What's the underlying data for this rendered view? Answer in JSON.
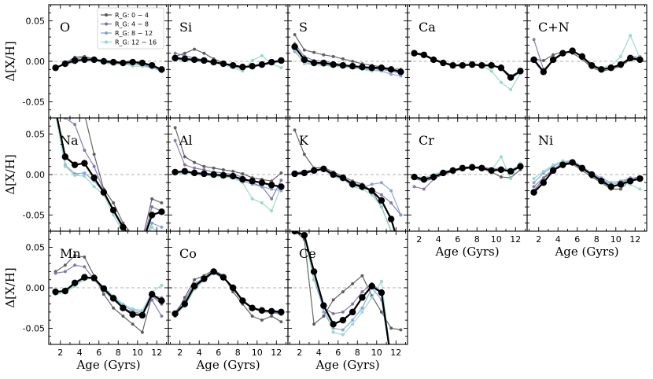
{
  "chart_data": {
    "type": "line",
    "layout": "grid of small multiples, 3 rows by 5 columns, shared axes",
    "xlabel": "Age (Gyrs)",
    "ylabel": "Δ[X/H]",
    "xlim": [
      0.8,
      13.2
    ],
    "ylim": [
      -0.07,
      0.07
    ],
    "xticks": [
      2,
      4,
      6,
      8,
      10,
      12
    ],
    "yticks": [
      -0.05,
      0.0,
      0.05
    ],
    "ytick_labels": [
      "-0.05",
      "0.00",
      "0.05"
    ],
    "zero_line": "dashed grey at 0.00",
    "x": [
      1.5,
      2.5,
      3.5,
      4.5,
      5.5,
      6.5,
      7.5,
      8.5,
      9.5,
      10.5,
      11.5,
      12.5
    ],
    "legend": {
      "location": "top-left of first panel",
      "entries": [
        {
          "label": "R_G: 0 − 4",
          "color": "#555555"
        },
        {
          "label": "R_G: 4 − 8",
          "color": "#7a6faa"
        },
        {
          "label": "R_G: 8 − 12",
          "color": "#7f9fd6"
        },
        {
          "label": "R_G: 12 − 16",
          "color": "#8fd8c8"
        }
      ]
    },
    "colors": {
      "mean": "#000000",
      "r0": "#555555",
      "r1": "#7a6faa",
      "r2": "#7f9fd6",
      "r3": "#8fd8c8"
    },
    "panels": [
      {
        "label": "O",
        "row": 0,
        "col": 0,
        "mean": [
          -0.008,
          -0.003,
          0.001,
          0.002,
          0.002,
          0.0,
          -0.001,
          -0.002,
          -0.001,
          -0.002,
          -0.005,
          -0.01
        ],
        "r0": [
          -0.009,
          -0.002,
          0.005,
          0.006,
          0.003,
          0.001,
          0.0,
          -0.001,
          0.001,
          -0.006,
          -0.006,
          -0.012
        ],
        "r1": [
          -0.01,
          -0.001,
          0.003,
          0.005,
          0.002,
          -0.001,
          -0.003,
          -0.002,
          0.0,
          -0.002,
          -0.008,
          -0.011
        ],
        "r2": [
          -0.008,
          -0.003,
          0.0,
          0.002,
          0.001,
          0.0,
          -0.002,
          -0.004,
          -0.003,
          -0.005,
          -0.007,
          -0.013
        ],
        "r3": [
          -0.007,
          -0.004,
          -0.002,
          0.001,
          0.001,
          -0.002,
          -0.004,
          -0.003,
          -0.006,
          -0.006,
          -0.008,
          -0.009
        ]
      },
      {
        "label": "Si",
        "row": 0,
        "col": 1,
        "mean": [
          0.004,
          0.003,
          0.002,
          0.001,
          -0.001,
          -0.003,
          -0.005,
          -0.007,
          -0.006,
          -0.004,
          -0.001,
          0.001
        ],
        "r0": [
          0.006,
          0.01,
          0.015,
          0.01,
          0.003,
          -0.002,
          -0.006,
          -0.009,
          -0.005,
          -0.005,
          -0.001,
          0.001
        ],
        "r1": [
          0.01,
          0.007,
          0.004,
          0.002,
          -0.001,
          -0.003,
          -0.006,
          -0.008,
          -0.006,
          -0.004,
          -0.002,
          0.001
        ],
        "r2": [
          0.003,
          0.002,
          0.001,
          0.0,
          -0.002,
          -0.004,
          -0.006,
          -0.008,
          -0.007,
          -0.005,
          -0.003,
          0.0
        ],
        "r3": [
          0.002,
          0.001,
          0.0,
          -0.001,
          -0.002,
          -0.004,
          -0.008,
          -0.012,
          0.001,
          0.007,
          -0.003,
          -0.008
        ]
      },
      {
        "label": "S",
        "row": 0,
        "col": 2,
        "mean": [
          0.018,
          0.002,
          -0.002,
          -0.002,
          -0.004,
          -0.005,
          -0.006,
          -0.007,
          -0.008,
          -0.008,
          -0.01,
          -0.013
        ],
        "r0": [
          0.033,
          0.014,
          0.011,
          0.008,
          0.006,
          0.003,
          0.0,
          -0.003,
          -0.005,
          -0.007,
          -0.009,
          -0.01
        ],
        "r1": [
          0.022,
          0.006,
          0.001,
          0.0,
          -0.002,
          -0.004,
          -0.006,
          -0.008,
          -0.009,
          -0.01,
          -0.012,
          -0.015
        ],
        "r2": [
          0.012,
          -0.001,
          -0.004,
          -0.005,
          -0.006,
          -0.007,
          -0.008,
          -0.009,
          -0.011,
          -0.012,
          -0.016,
          -0.018
        ],
        "r3": [
          0.014,
          -0.003,
          -0.004,
          -0.004,
          -0.006,
          -0.007,
          -0.008,
          -0.01,
          -0.012,
          -0.01,
          -0.008,
          -0.012
        ]
      },
      {
        "label": "Ca",
        "row": 0,
        "col": 3,
        "mean": [
          0.01,
          0.008,
          0.002,
          -0.002,
          -0.005,
          -0.005,
          -0.004,
          -0.005,
          -0.005,
          -0.008,
          -0.02,
          -0.012
        ],
        "r0": [
          0.011,
          0.009,
          0.003,
          -0.001,
          -0.004,
          -0.005,
          -0.004,
          -0.005,
          -0.005,
          -0.008,
          -0.018,
          -0.012
        ],
        "r1": [
          0.01,
          0.008,
          0.002,
          -0.002,
          -0.005,
          -0.005,
          -0.004,
          -0.005,
          -0.005,
          -0.008,
          -0.021,
          -0.012
        ],
        "r2": [
          0.009,
          0.007,
          0.002,
          -0.002,
          -0.006,
          -0.005,
          -0.004,
          -0.006,
          -0.005,
          -0.009,
          -0.022,
          -0.013
        ],
        "r3": [
          0.012,
          0.007,
          0.003,
          -0.003,
          -0.004,
          -0.004,
          -0.004,
          -0.005,
          -0.012,
          -0.026,
          -0.035,
          -0.015
        ]
      },
      {
        "label": "C+N",
        "row": 0,
        "col": 4,
        "mean": [
          0.002,
          -0.013,
          0.002,
          0.01,
          0.013,
          0.006,
          -0.005,
          -0.01,
          -0.008,
          -0.004,
          0.004,
          0.002
        ],
        "r0": [
          0.003,
          0.001,
          0.008,
          0.012,
          0.01,
          0.003,
          -0.008,
          -0.012,
          -0.01,
          -0.006,
          0.002,
          0.002
        ],
        "r1": [
          0.027,
          -0.01,
          0.001,
          0.009,
          0.014,
          0.005,
          -0.006,
          -0.01,
          -0.008,
          -0.005,
          0.006,
          0.005
        ],
        "r2": [
          0.0,
          -0.014,
          0.002,
          0.01,
          0.012,
          0.007,
          -0.004,
          -0.009,
          -0.008,
          -0.004,
          0.003,
          0.006
        ],
        "r3": [
          0.004,
          -0.013,
          0.003,
          0.011,
          0.012,
          0.006,
          -0.004,
          -0.008,
          -0.005,
          0.006,
          0.032,
          0.004
        ]
      },
      {
        "label": "Na",
        "row": 1,
        "col": 0,
        "mean": [
          0.08,
          0.022,
          0.012,
          0.014,
          -0.004,
          -0.022,
          -0.044,
          -0.065,
          -0.08,
          -0.085,
          -0.05,
          -0.046
        ],
        "r0": [
          0.09,
          0.085,
          0.08,
          0.075,
          0.025,
          -0.018,
          -0.035,
          -0.06,
          -0.075,
          -0.08,
          -0.03,
          -0.035
        ],
        "r1": [
          0.09,
          0.07,
          0.062,
          0.03,
          0.01,
          -0.02,
          -0.045,
          -0.068,
          -0.082,
          -0.085,
          -0.04,
          -0.045
        ],
        "r2": [
          0.08,
          0.012,
          0.001,
          0.002,
          -0.008,
          -0.022,
          -0.045,
          -0.068,
          -0.085,
          -0.088,
          -0.06,
          -0.065
        ],
        "r3": [
          0.075,
          0.01,
          -0.001,
          -0.002,
          -0.015,
          -0.025,
          -0.05,
          -0.072,
          -0.088,
          -0.09,
          -0.065,
          -0.075
        ]
      },
      {
        "label": "Al",
        "row": 1,
        "col": 1,
        "mean": [
          0.003,
          0.004,
          0.002,
          0.001,
          0.0,
          -0.001,
          -0.002,
          -0.006,
          -0.008,
          -0.01,
          -0.013,
          -0.015
        ],
        "r0": [
          0.058,
          0.022,
          0.015,
          0.01,
          0.008,
          0.006,
          0.004,
          0.001,
          -0.004,
          -0.006,
          -0.008,
          0.002
        ],
        "r1": [
          0.042,
          0.012,
          0.008,
          0.006,
          0.003,
          0.002,
          0.0,
          -0.003,
          -0.01,
          -0.015,
          -0.03,
          -0.007
        ],
        "r2": [
          0.002,
          0.003,
          0.001,
          0.0,
          -0.001,
          -0.002,
          -0.004,
          -0.008,
          -0.012,
          -0.015,
          -0.018,
          -0.02
        ],
        "r3": [
          0.001,
          0.002,
          0.0,
          -0.001,
          -0.002,
          -0.003,
          -0.004,
          -0.01,
          -0.03,
          -0.035,
          -0.045,
          -0.015
        ]
      },
      {
        "label": "K",
        "row": 1,
        "col": 2,
        "mean": [
          0.001,
          0.002,
          0.005,
          0.007,
          0.0,
          -0.004,
          -0.012,
          -0.015,
          -0.02,
          -0.032,
          -0.055,
          -0.095
        ],
        "r0": [
          0.055,
          0.025,
          0.008,
          0.009,
          0.003,
          -0.002,
          -0.008,
          -0.012,
          -0.02,
          -0.04,
          -0.07,
          -0.095
        ],
        "r1": [
          0.002,
          0.004,
          0.006,
          0.006,
          0.001,
          -0.004,
          -0.01,
          -0.014,
          -0.019,
          -0.025,
          -0.035,
          -0.05
        ],
        "r2": [
          0.0,
          0.001,
          0.004,
          0.006,
          -0.002,
          -0.006,
          -0.013,
          -0.016,
          -0.012,
          -0.01,
          -0.02,
          -0.05
        ],
        "r3": [
          0.001,
          0.002,
          0.005,
          0.008,
          0.0,
          -0.006,
          -0.015,
          -0.018,
          -0.025,
          -0.04,
          -0.07,
          -0.095
        ]
      },
      {
        "label": "Cr",
        "row": 1,
        "col": 3,
        "mean": [
          -0.003,
          -0.006,
          -0.003,
          0.002,
          0.005,
          0.008,
          0.009,
          0.008,
          0.005,
          0.006,
          0.004,
          0.01
        ],
        "r0": [
          -0.005,
          -0.008,
          -0.005,
          0.0,
          0.004,
          0.007,
          0.008,
          0.008,
          0.003,
          -0.003,
          -0.004,
          0.006
        ],
        "r1": [
          -0.015,
          -0.018,
          -0.006,
          0.002,
          0.006,
          0.008,
          0.009,
          0.01,
          0.007,
          0.008,
          0.005,
          0.012
        ],
        "r2": [
          -0.002,
          -0.005,
          -0.002,
          0.003,
          0.006,
          0.008,
          0.01,
          0.008,
          0.006,
          0.008,
          0.006,
          0.01
        ],
        "r3": [
          -0.002,
          -0.004,
          0.0,
          0.004,
          0.006,
          0.009,
          0.01,
          0.009,
          0.005,
          0.022,
          -0.005,
          0.014
        ]
      },
      {
        "label": "Ni",
        "row": 1,
        "col": 4,
        "mean": [
          -0.022,
          -0.01,
          0.005,
          0.012,
          0.015,
          0.008,
          0.0,
          -0.008,
          -0.015,
          -0.012,
          -0.008,
          -0.005
        ],
        "r0": [
          -0.02,
          -0.005,
          0.006,
          0.012,
          0.013,
          0.005,
          -0.003,
          -0.01,
          -0.018,
          -0.018,
          -0.006,
          -0.006
        ],
        "r1": [
          -0.015,
          -0.004,
          0.007,
          0.014,
          0.016,
          0.009,
          0.001,
          -0.006,
          -0.012,
          -0.01,
          -0.005,
          -0.003
        ],
        "r2": [
          -0.01,
          0.002,
          0.01,
          0.016,
          0.017,
          0.01,
          0.002,
          -0.004,
          -0.01,
          -0.008,
          -0.004,
          -0.006
        ],
        "r3": [
          -0.005,
          0.004,
          0.012,
          0.017,
          0.014,
          0.007,
          -0.002,
          -0.008,
          -0.012,
          -0.01,
          -0.012,
          -0.018
        ]
      },
      {
        "label": "Mn",
        "row": 2,
        "col": 0,
        "mean": [
          -0.005,
          -0.004,
          0.006,
          0.013,
          0.012,
          -0.001,
          -0.013,
          -0.025,
          -0.033,
          -0.034,
          -0.008,
          -0.016
        ],
        "r0": [
          0.02,
          0.028,
          0.04,
          0.038,
          0.015,
          -0.008,
          -0.025,
          -0.035,
          -0.045,
          -0.055,
          -0.01,
          -0.02
        ],
        "r1": [
          0.018,
          0.02,
          0.028,
          0.026,
          0.01,
          -0.003,
          -0.015,
          -0.025,
          -0.03,
          -0.032,
          -0.015,
          -0.035
        ],
        "r2": [
          -0.006,
          -0.004,
          0.004,
          0.012,
          0.011,
          0.0,
          -0.012,
          -0.022,
          -0.028,
          -0.03,
          -0.01,
          -0.012
        ],
        "r3": [
          -0.008,
          -0.006,
          0.002,
          0.01,
          0.012,
          0.001,
          -0.01,
          -0.02,
          -0.026,
          -0.028,
          -0.005,
          0.003
        ]
      },
      {
        "label": "Co",
        "row": 2,
        "col": 1,
        "mean": [
          -0.032,
          -0.02,
          0.002,
          0.011,
          0.02,
          0.013,
          0.0,
          -0.016,
          -0.025,
          -0.028,
          -0.029,
          -0.03
        ],
        "r0": [
          -0.035,
          -0.012,
          0.01,
          0.015,
          0.022,
          0.015,
          -0.005,
          -0.02,
          -0.035,
          -0.04,
          -0.035,
          -0.042
        ],
        "r1": [
          -0.03,
          -0.015,
          0.005,
          0.012,
          0.021,
          0.014,
          0.0,
          -0.015,
          -0.025,
          -0.03,
          -0.03,
          -0.033
        ],
        "r2": [
          -0.031,
          -0.021,
          0.0,
          0.01,
          0.019,
          0.012,
          0.001,
          -0.017,
          -0.026,
          -0.028,
          -0.029,
          -0.032
        ],
        "r3": [
          -0.033,
          -0.023,
          -0.002,
          0.009,
          0.018,
          0.011,
          0.002,
          -0.015,
          -0.024,
          -0.028,
          -0.028,
          -0.028
        ]
      },
      {
        "label": "Ce",
        "row": 2,
        "col": 2,
        "mean": [
          0.07,
          0.065,
          0.02,
          -0.022,
          -0.045,
          -0.04,
          -0.03,
          -0.012,
          0.002,
          -0.006,
          -0.09,
          -0.09
        ],
        "r0": [
          0.07,
          0.06,
          -0.045,
          -0.035,
          -0.015,
          -0.005,
          0.005,
          0.015,
          -0.01,
          -0.03,
          -0.05,
          -0.052
        ],
        "r1": [
          0.07,
          0.065,
          0.01,
          -0.025,
          -0.032,
          -0.03,
          -0.02,
          -0.005,
          0.005,
          -0.005,
          -0.085,
          -0.09
        ],
        "r2": [
          0.07,
          0.065,
          0.02,
          -0.03,
          -0.05,
          -0.052,
          -0.04,
          -0.025,
          0.0,
          -0.015,
          -0.09,
          -0.09
        ],
        "r3": [
          0.07,
          0.065,
          0.01,
          -0.02,
          -0.055,
          -0.058,
          -0.045,
          -0.03,
          -0.012,
          0.008,
          -0.09,
          -0.09
        ]
      }
    ]
  }
}
